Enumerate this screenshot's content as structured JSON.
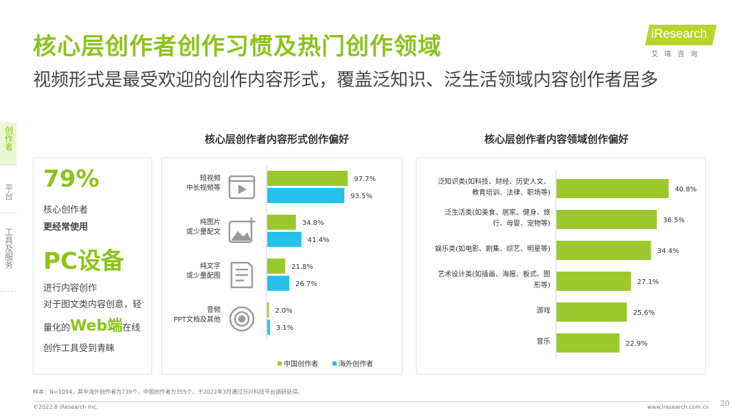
{
  "header": {
    "title": "核心层创作者创作习惯及热门创作领域",
    "subtitle": "视频形式是最受欢迎的创作内容形式，覆盖泛知识、泛生活领域内容创作者居多"
  },
  "logo": {
    "brand": "iResearch",
    "cn": "艾瑞咨询"
  },
  "sidebar": {
    "tabs": [
      {
        "label": "创作者",
        "active": true
      },
      {
        "label": "平台",
        "active": false
      },
      {
        "label": "工具及服务",
        "active": false
      }
    ]
  },
  "highlight": {
    "percent": "79%",
    "line1": "核心创作者",
    "line2": "更经常使用",
    "device": "PC设备",
    "line3": "进行内容创作",
    "line4": "对于图文类内容创意，轻",
    "line5_pre": "量化的",
    "line5_web": "Web端",
    "line5_post": "在线",
    "line6": "创作工具受到青睐"
  },
  "colors": {
    "china": "#9cc82e",
    "overseas": "#26c0e8",
    "domain": "#9cc82e",
    "title_green": "#8cc21c"
  },
  "chart_data": [
    {
      "type": "bar",
      "orientation": "horizontal",
      "title": "核心层创作者内容形式创作偏好",
      "categories": [
        {
          "lines": [
            "短视频",
            "中长视频等"
          ],
          "icon": "video-icon"
        },
        {
          "lines": [
            "纯图片",
            "或少量配文"
          ],
          "icon": "image-icon"
        },
        {
          "lines": [
            "纯文字",
            "或少量配图"
          ],
          "icon": "document-icon"
        },
        {
          "lines": [
            "音频",
            "PPT文档及其他"
          ],
          "icon": "audio-disc-icon"
        }
      ],
      "series": [
        {
          "name": "中国创作者",
          "values": [
            97.7,
            34.8,
            21.8,
            2.0
          ],
          "labels": [
            "97.7%",
            "34.8%",
            "21.8%",
            "2.0%"
          ]
        },
        {
          "name": "海外创作者",
          "values": [
            93.5,
            41.4,
            26.7,
            3.1
          ],
          "labels": [
            "93.5%",
            "41.4%",
            "26.7%",
            "3.1%"
          ]
        }
      ],
      "xlim": [
        0,
        100
      ],
      "legend": "bottom-right"
    },
    {
      "type": "bar",
      "orientation": "horizontal",
      "title": "核心层创作者内容领域创作偏好",
      "categories": [
        {
          "lines": [
            "泛知识类(如科技、财经、历史人文、",
            "教育培训、法律、职场等)"
          ]
        },
        {
          "lines": [
            "泛生活类(如美食、居家、健身、旅",
            "行、母婴、宠物等)"
          ]
        },
        {
          "lines": [
            "娱乐类(如电影、剧集、综艺、明星等)"
          ]
        },
        {
          "lines": [
            "艺术设计类(如插画、海报、板式、图",
            "形等)"
          ]
        },
        {
          "lines": [
            "游戏"
          ]
        },
        {
          "lines": [
            "音乐"
          ]
        }
      ],
      "values": [
        40.8,
        36.5,
        34.4,
        27.1,
        25.6,
        22.9
      ],
      "labels": [
        "40.8%",
        "36.5%",
        "34.4%",
        "27.1%",
        "25.6%",
        "22.9%"
      ],
      "xlim": [
        0,
        45
      ]
    }
  ],
  "footer": {
    "note": "样本：N=1094，其中海外创作者为739个，中国创作者为355个。于2022年3月通过万兴科技平台调研获得。",
    "copyright": "©2022.8 iResearch Inc.",
    "site": "www.iresearch.com.cn",
    "page": "20"
  }
}
